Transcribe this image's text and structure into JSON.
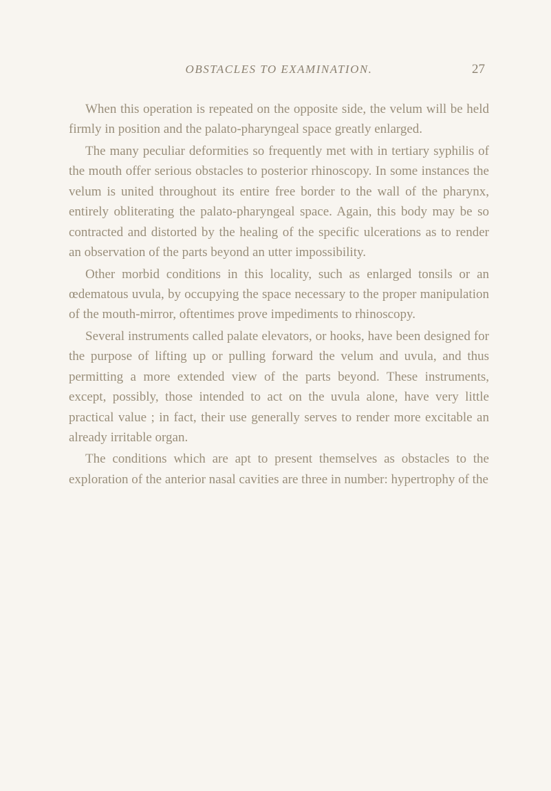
{
  "header": {
    "chapter_title": "OBSTACLES TO EXAMINATION.",
    "page_number": "27"
  },
  "paragraphs": [
    "When this operation is repeated on the opposite side, the velum will be held firmly in position and the palato-pharyngeal space greatly enlarged.",
    "The many peculiar deformities so frequently met with in tertiary syphilis of the mouth offer serious obstacles to posterior rhinoscopy. In some instances the velum is united throughout its entire free border to the wall of the pharynx, entirely obliterating the palato-pharyngeal space. Again, this body may be so contracted and distorted by the healing of the specific ulcerations as to render an observation of the parts beyond an utter impossibility.",
    "Other morbid conditions in this locality, such as enlarged tonsils or an œdematous uvula, by occupying the space necessary to the proper manipulation of the mouth-mirror, oftentimes prove impediments to rhinoscopy.",
    "Several instruments called palate elevators, or hooks, have been designed for the purpose of lifting up or pulling forward the velum and uvula, and thus permitting a more extended view of the parts beyond. These instruments, except, possibly, those intended to act on the uvula alone, have very little practical value ; in fact, their use generally serves to render more excitable an already irritable organ.",
    "The conditions which are apt to present themselves as obstacles to the exploration of the anterior nasal cavities are three in number: hypertrophy of the"
  ]
}
